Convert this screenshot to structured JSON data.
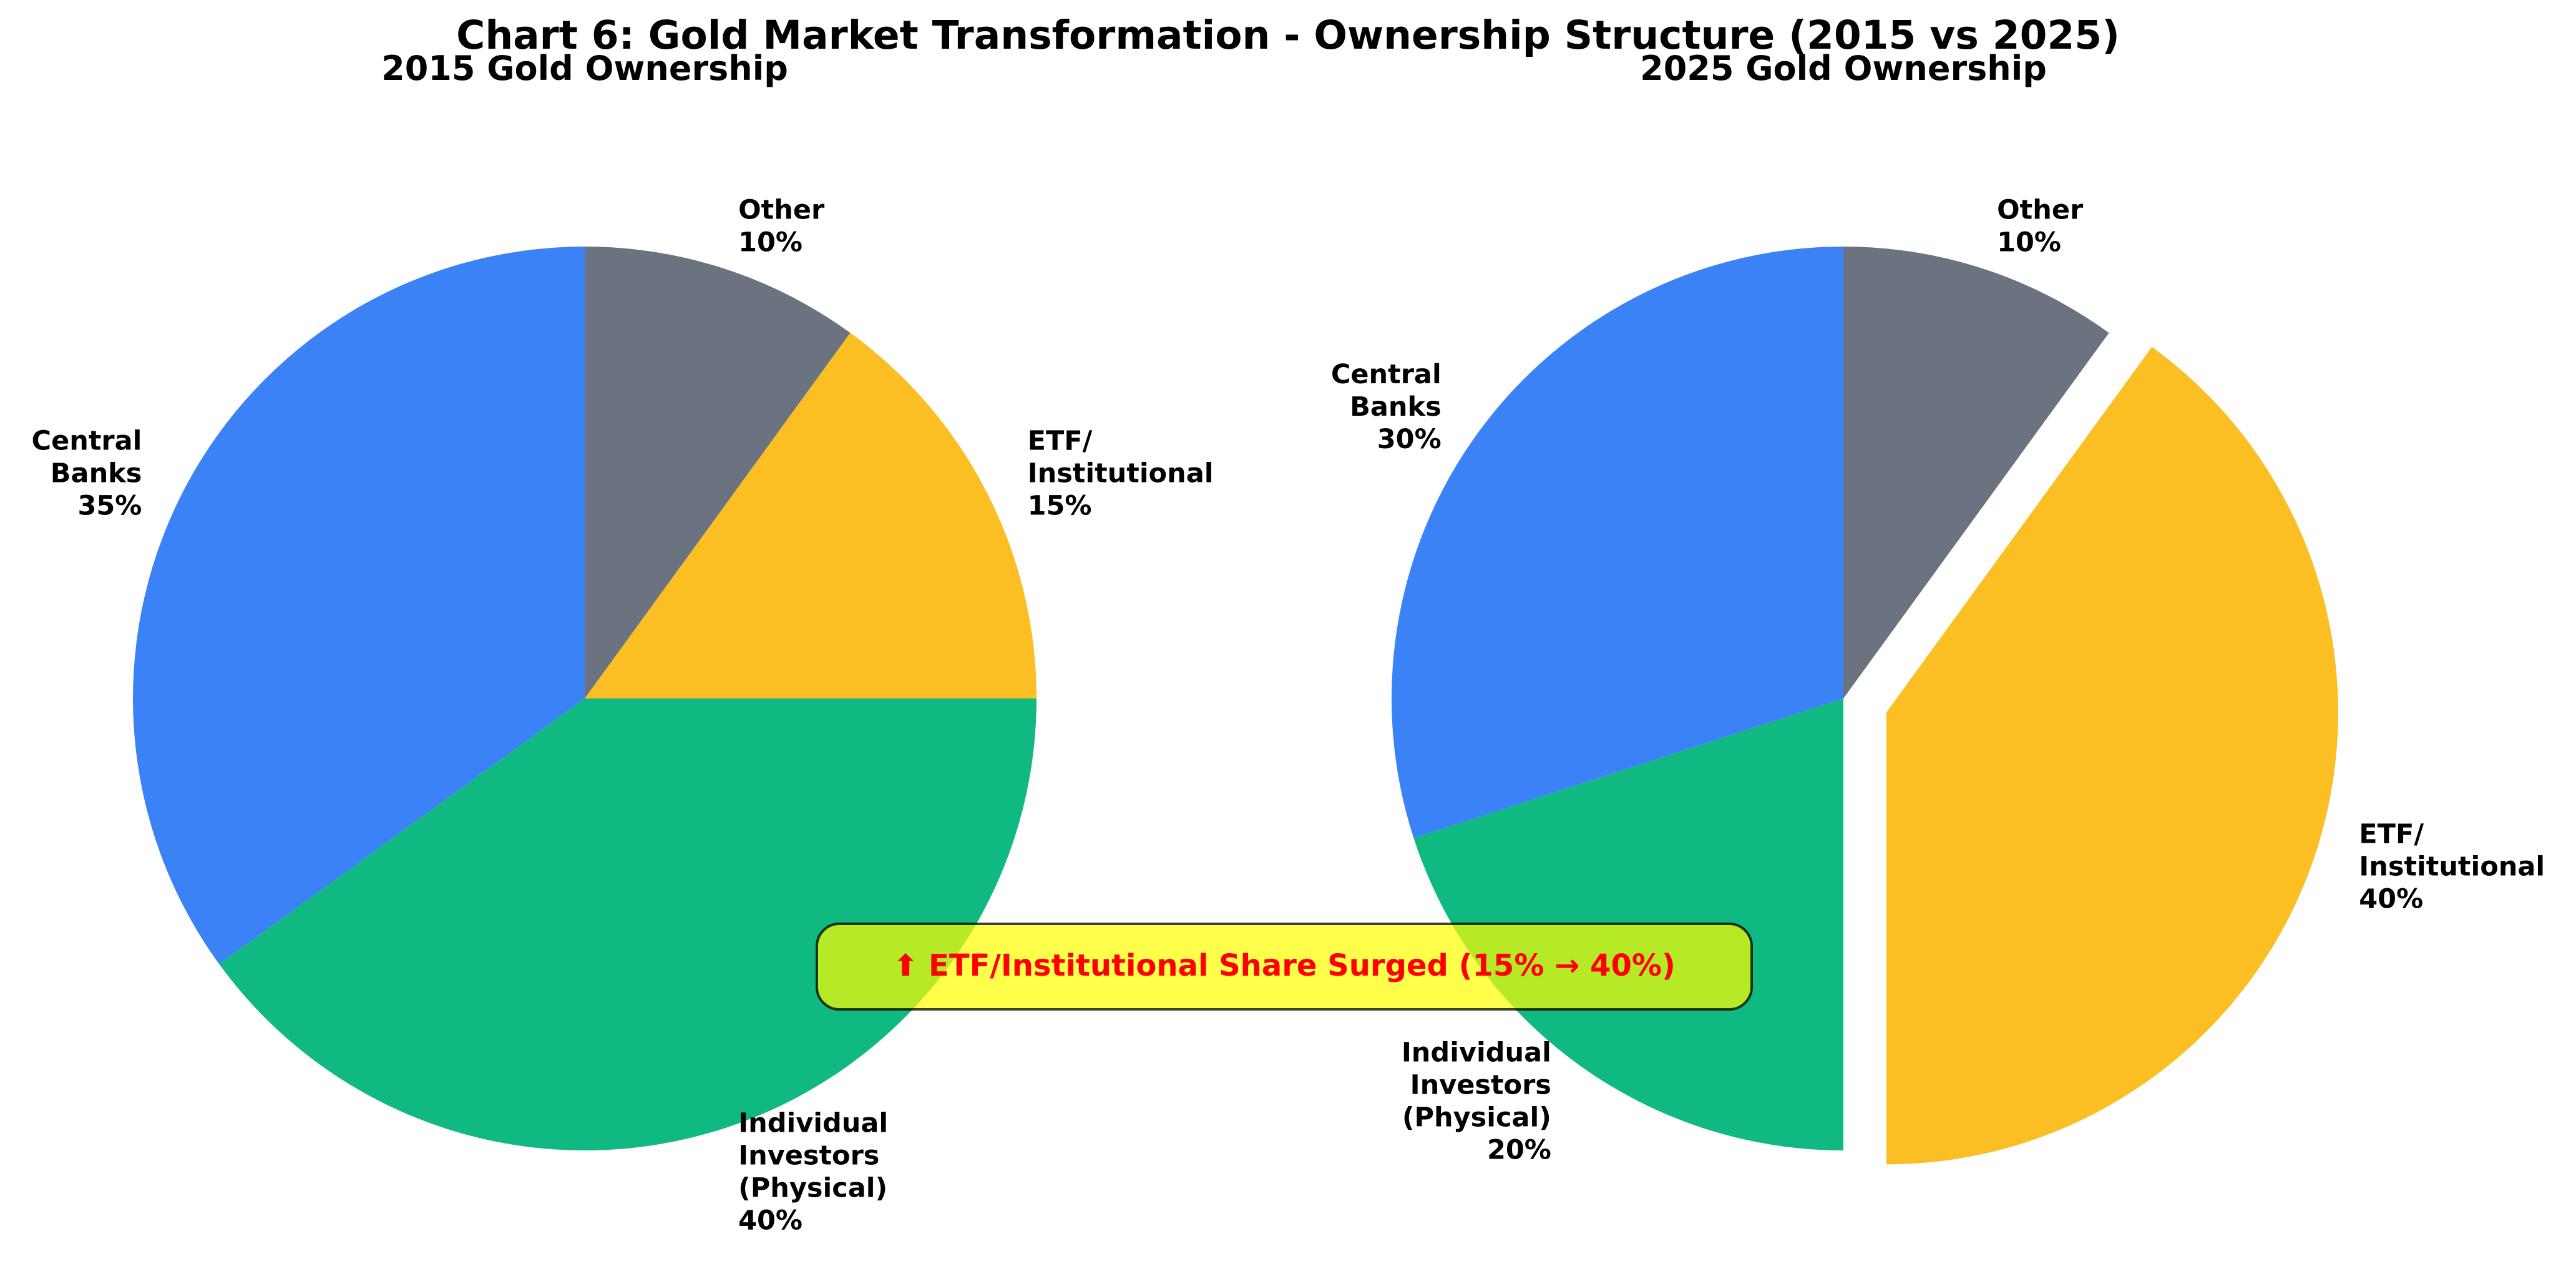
{
  "chart_data": [
    {
      "type": "pie",
      "title": "2015 Gold Ownership",
      "slices": [
        {
          "label": "Other",
          "value": 10,
          "pct_label": "10%",
          "color": "#6b7280",
          "explode": 0
        },
        {
          "label": "ETF/\nInstitutional",
          "value": 15,
          "pct_label": "15%",
          "color": "#fbbf24",
          "explode": 0
        },
        {
          "label": "Individual\nInvestors\n(Physical)",
          "value": 40,
          "pct_label": "40%",
          "color": "#10b981",
          "explode": 0
        },
        {
          "label": "Central\nBanks",
          "value": 35,
          "pct_label": "35%",
          "color": "#3b82f6",
          "explode": 0
        }
      ]
    },
    {
      "type": "pie",
      "title": "2025 Gold Ownership",
      "slices": [
        {
          "label": "Other",
          "value": 10,
          "pct_label": "10%",
          "color": "#6b7280",
          "explode": 0
        },
        {
          "label": "ETF/\nInstitutional",
          "value": 40,
          "pct_label": "40%",
          "color": "#fbbf24",
          "explode": 0.1
        },
        {
          "label": "Individual\nInvestors\n(Physical)",
          "value": 20,
          "pct_label": "20%",
          "color": "#10b981",
          "explode": 0
        },
        {
          "label": "Central\nBanks",
          "value": 30,
          "pct_label": "30%",
          "color": "#3b82f6",
          "explode": 0
        }
      ]
    }
  ],
  "figure": {
    "title": "Chart 6: Gold Market Transformation - Ownership Structure (2015 vs 2025)",
    "annotation": "⬆ ETF/Institutional Share Surged (15% → 40%)",
    "annotation_bg": "#ffff00",
    "annotation_color": "#ff0000"
  }
}
